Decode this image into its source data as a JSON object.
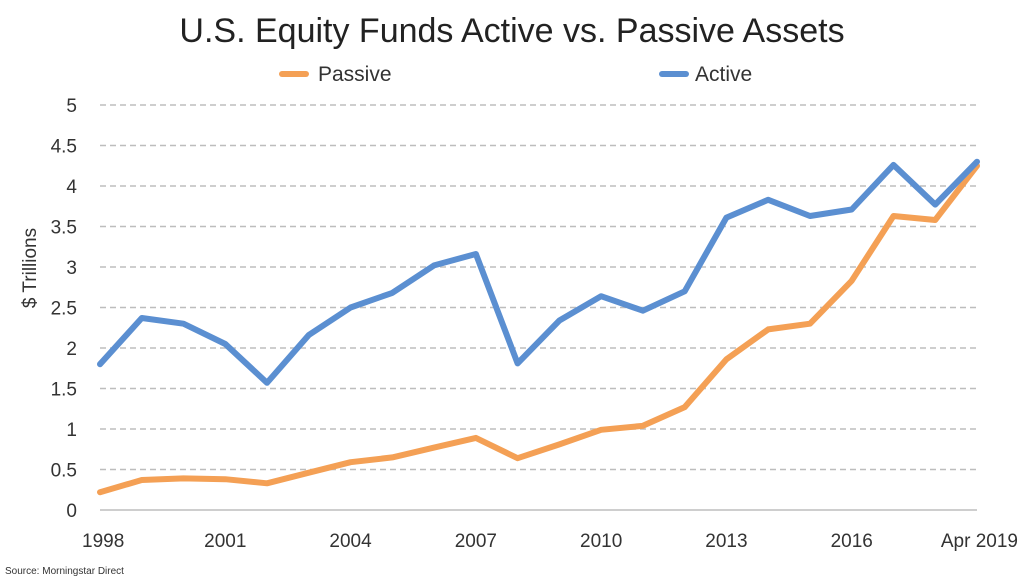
{
  "source_note": "Source: Morningstar Direct",
  "chart_data": {
    "type": "line",
    "title": "U.S. Equity Funds Active vs. Passive Assets",
    "xlabel": "",
    "ylabel": "$ Trillions",
    "x": [
      "1998",
      "1999",
      "2000",
      "2001",
      "2002",
      "2003",
      "2004",
      "2005",
      "2006",
      "2007",
      "2008",
      "2009",
      "2010",
      "2011",
      "2012",
      "2013",
      "2014",
      "2015",
      "2016",
      "2017",
      "2018",
      "Apr 2019"
    ],
    "x_tick_labels": [
      "1998",
      "2001",
      "2004",
      "2007",
      "2010",
      "2013",
      "2016",
      "Apr 2019"
    ],
    "ylim": [
      0,
      5
    ],
    "y_ticks": [
      "0",
      "0.5",
      "1",
      "1.5",
      "2",
      "2.5",
      "3",
      "3.5",
      "4",
      "4.5",
      "5"
    ],
    "grid": true,
    "legend_position": "top",
    "series": [
      {
        "name": "Passive",
        "color": "#f4a055",
        "values": [
          0.22,
          0.37,
          0.39,
          0.38,
          0.33,
          0.46,
          0.59,
          0.65,
          0.77,
          0.89,
          0.64,
          0.81,
          0.99,
          1.04,
          1.27,
          1.86,
          2.23,
          2.3,
          2.83,
          3.63,
          3.58,
          4.25
        ]
      },
      {
        "name": "Active",
        "color": "#5b8fd1",
        "values": [
          1.8,
          2.37,
          2.3,
          2.05,
          1.57,
          2.16,
          2.5,
          2.68,
          3.02,
          3.16,
          1.81,
          2.34,
          2.64,
          2.46,
          2.7,
          3.61,
          3.83,
          3.63,
          3.71,
          4.26,
          3.77,
          4.3
        ]
      }
    ]
  }
}
